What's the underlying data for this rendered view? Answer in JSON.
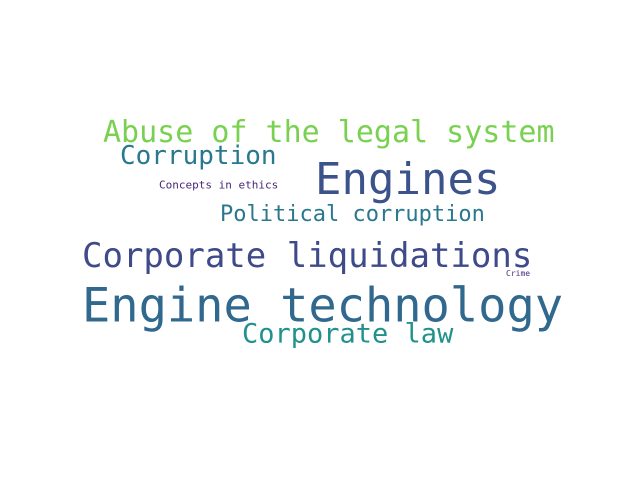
{
  "words": [
    {
      "text": "Abuse of the legal system",
      "color": "#7ad151"
    },
    {
      "text": "Corruption",
      "color": "#2a788e"
    },
    {
      "text": "Engines",
      "color": "#3b528b"
    },
    {
      "text": "Concepts in ethics",
      "color": "#482878"
    },
    {
      "text": "Political corruption",
      "color": "#2a788e"
    },
    {
      "text": "Corporate liquidations",
      "color": "#3e4a89"
    },
    {
      "text": "Crime",
      "color": "#472d7b"
    },
    {
      "text": "Engine technology",
      "color": "#31688e"
    },
    {
      "text": "Corporate law",
      "color": "#21918c"
    }
  ]
}
